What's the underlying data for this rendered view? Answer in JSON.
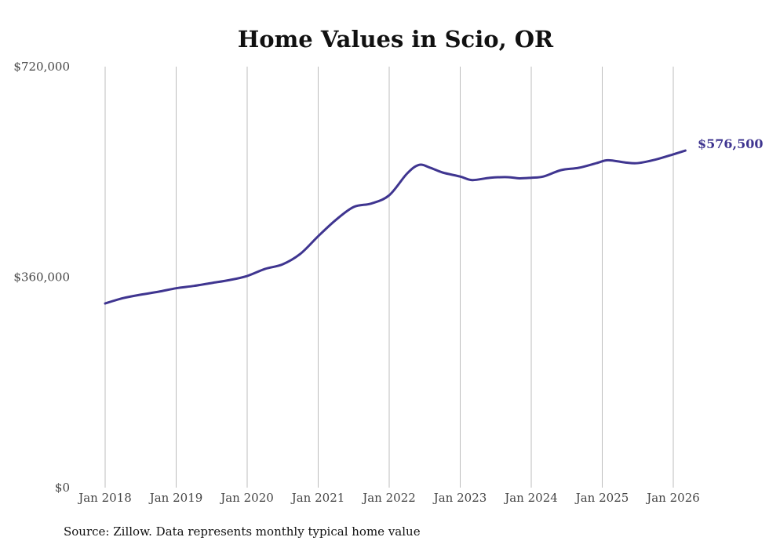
{
  "chart_data": {
    "type": "line",
    "title": "Home Values in Scio, OR",
    "source": "Source: Zillow. Data represents monthly typical home value",
    "ylim": [
      0,
      720000
    ],
    "y_ticks": [
      {
        "value": 0,
        "label": "$0"
      },
      {
        "value": 360000,
        "label": "$360,000"
      },
      {
        "value": 720000,
        "label": "$720,000"
      }
    ],
    "x_ticks": [
      {
        "value": 2018,
        "label": "Jan 2018"
      },
      {
        "value": 2019,
        "label": "Jan 2019"
      },
      {
        "value": 2020,
        "label": "Jan 2020"
      },
      {
        "value": 2021,
        "label": "Jan 2021"
      },
      {
        "value": 2022,
        "label": "Jan 2022"
      },
      {
        "value": 2023,
        "label": "Jan 2023"
      },
      {
        "value": 2024,
        "label": "Jan 2024"
      },
      {
        "value": 2025,
        "label": "Jan 2025"
      },
      {
        "value": 2026,
        "label": "Jan 2026"
      }
    ],
    "grid": "vertical",
    "line_color": "#3f3590",
    "end_label": "$576,500",
    "series": [
      {
        "name": "Typical home value",
        "points": [
          [
            2018.0,
            315000
          ],
          [
            2018.25,
            324000
          ],
          [
            2018.5,
            330000
          ],
          [
            2018.75,
            335000
          ],
          [
            2019.0,
            341000
          ],
          [
            2019.25,
            345000
          ],
          [
            2019.5,
            350000
          ],
          [
            2019.75,
            355000
          ],
          [
            2020.0,
            362000
          ],
          [
            2020.25,
            374000
          ],
          [
            2020.5,
            382000
          ],
          [
            2020.75,
            400000
          ],
          [
            2021.0,
            430000
          ],
          [
            2021.25,
            458000
          ],
          [
            2021.5,
            480000
          ],
          [
            2021.75,
            486000
          ],
          [
            2022.0,
            500000
          ],
          [
            2022.25,
            537000
          ],
          [
            2022.42,
            552000
          ],
          [
            2022.58,
            547000
          ],
          [
            2022.75,
            539000
          ],
          [
            2023.0,
            532000
          ],
          [
            2023.17,
            526000
          ],
          [
            2023.42,
            530000
          ],
          [
            2023.67,
            531000
          ],
          [
            2023.83,
            529000
          ],
          [
            2024.0,
            530000
          ],
          [
            2024.17,
            532000
          ],
          [
            2024.42,
            543000
          ],
          [
            2024.67,
            547000
          ],
          [
            2024.92,
            555000
          ],
          [
            2025.08,
            560000
          ],
          [
            2025.33,
            556000
          ],
          [
            2025.5,
            555000
          ],
          [
            2025.75,
            561000
          ],
          [
            2026.0,
            570000
          ],
          [
            2026.17,
            576500
          ]
        ]
      }
    ]
  }
}
